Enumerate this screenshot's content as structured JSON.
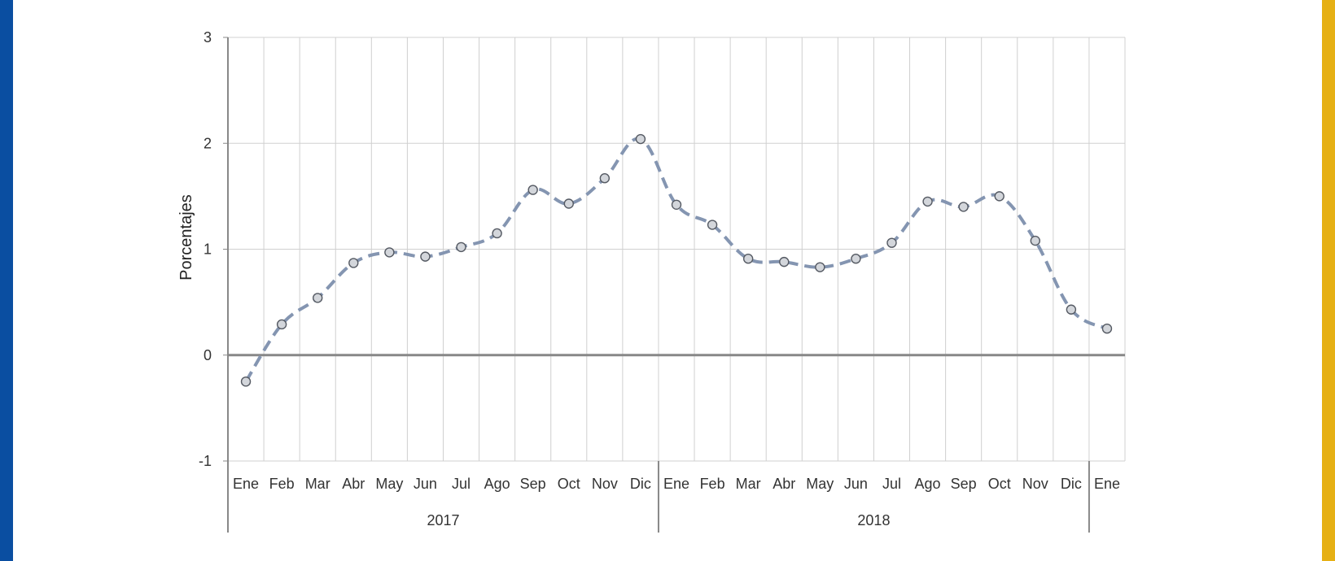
{
  "colors": {
    "left_bar": "#0a4ea1",
    "right_bar": "#e6b014",
    "line": "#8495b1",
    "marker_fill": "#d3d6db",
    "marker_stroke": "#555a63",
    "grid": "#d0d0d0",
    "axis": "#888888"
  },
  "chart_data": {
    "type": "line",
    "ylabel": "Porcentajes",
    "ylim": [
      -1,
      3
    ],
    "yticks": [
      -1,
      0,
      1,
      2,
      3
    ],
    "grid": true,
    "line_style": "dashed smooth with circle markers",
    "categories": [
      "Ene",
      "Feb",
      "Mar",
      "Abr",
      "May",
      "Jun",
      "Jul",
      "Ago",
      "Sep",
      "Oct",
      "Nov",
      "Dic",
      "Ene",
      "Feb",
      "Mar",
      "Abr",
      "May",
      "Jun",
      "Jul",
      "Ago",
      "Sep",
      "Oct",
      "Nov",
      "Dic",
      "Ene"
    ],
    "groups": [
      {
        "label": "2017",
        "count": 12
      },
      {
        "label": "2018",
        "count": 12
      },
      {
        "label": "",
        "count": 1
      }
    ],
    "series": [
      {
        "values": [
          -0.25,
          0.29,
          0.54,
          0.87,
          0.97,
          0.93,
          1.02,
          1.15,
          1.56,
          1.43,
          1.67,
          2.04,
          1.42,
          1.23,
          0.91,
          0.88,
          0.83,
          0.91,
          1.06,
          1.45,
          1.4,
          1.5,
          1.08,
          0.43,
          0.25
        ]
      }
    ]
  }
}
